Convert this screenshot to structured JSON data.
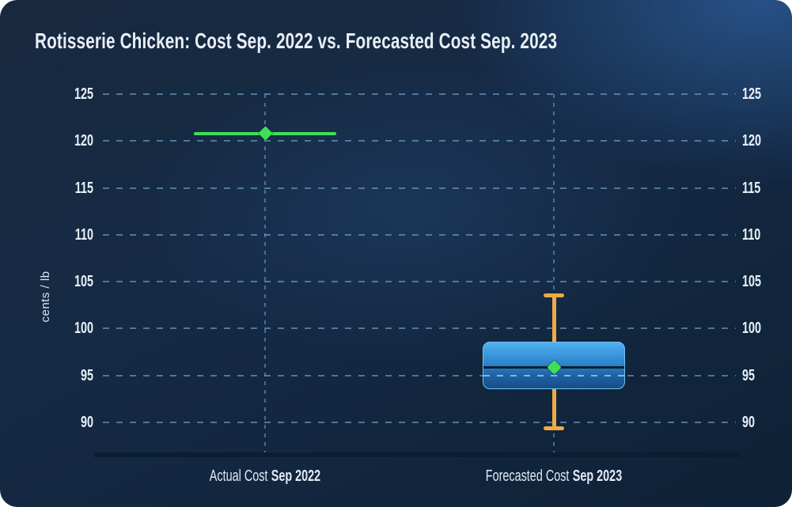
{
  "title": "Rotisserie Chicken: Cost Sep. 2022 vs. Forecasted Cost Sep. 2023",
  "chart_data": {
    "type": "box",
    "title": "Rotisserie Chicken: Cost Sep. 2022 vs. Forecasted Cost Sep. 2023",
    "ylabel": "cents / lb",
    "ylim": [
      86.5,
      127.5
    ],
    "yticks": [
      125,
      120,
      115,
      110,
      105,
      100,
      95,
      90
    ],
    "grid": "horizontal-dashed with vertical dashed guide at each category, y labels mirrored on both sides",
    "legend": "none",
    "categories": [
      {
        "name": "Actual Cost",
        "period": "Sep 2022"
      },
      {
        "name": "Forecasted Cost",
        "period": "Sep 2023"
      }
    ],
    "series": [
      {
        "category": "Actual Cost Sep 2022",
        "type": "line-marker",
        "value": 120.8
      },
      {
        "category": "Forecasted Cost Sep 2023",
        "type": "box-whisker",
        "low": 89.4,
        "q1": 93.5,
        "median": 95.9,
        "q3": 98.6,
        "high": 103.5,
        "mean": 95.9
      }
    ]
  },
  "colors": {
    "accent_green": "#3ce155",
    "accent_orange": "#edaa45",
    "box_border": "#6fc2f4",
    "box_top": "#4fb0ef",
    "box_mid": "#2e86cd",
    "box_low": "#1e62a5",
    "box_bottom": "#174e85",
    "median_line": "#0a1e33",
    "axis_line": "#0b1d31",
    "text": "#e8eff7"
  }
}
